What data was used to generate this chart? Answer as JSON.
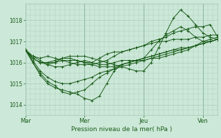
{
  "title": "",
  "xlabel": "Pression niveau de la mer( hPa )",
  "ylabel": "",
  "bg_color": "#cce8d8",
  "plot_bg_color": "#cce8d8",
  "line_color": "#1a5c1a",
  "grid_color": "#aaccbb",
  "dark_grid_color": "#5a9a7a",
  "ylim": [
    1013.5,
    1018.8
  ],
  "yticks": [
    1014,
    1015,
    1016,
    1017,
    1018
  ],
  "xtick_labels": [
    "Mar",
    "Mer",
    "Jeu",
    "Ven"
  ],
  "xtick_positions": [
    0,
    96,
    192,
    288
  ],
  "total_hours": 312,
  "series": [
    [
      1016.6,
      1016.3,
      1016.1,
      1015.9,
      1015.8,
      1015.8,
      1015.9,
      1016.0,
      1016.1,
      1016.0,
      1016.2,
      1016.4,
      1016.5,
      1016.5,
      1016.6,
      1016.7,
      1016.8,
      1017.0,
      1017.1,
      1017.2,
      1017.4,
      1017.5,
      1017.6,
      1017.7,
      1017.7,
      1017.8,
      1017.2
    ],
    [
      1016.6,
      1016.0,
      1015.4,
      1015.0,
      1014.8,
      1014.7,
      1014.6,
      1014.5,
      1014.3,
      1014.2,
      1014.4,
      1015.0,
      1015.6,
      1015.9,
      1016.0,
      1016.1,
      1016.1,
      1016.2,
      1016.2,
      1016.3,
      1016.4,
      1016.5,
      1016.6,
      1016.8,
      1017.0,
      1017.1,
      1017.2
    ],
    [
      1016.6,
      1016.0,
      1015.5,
      1015.1,
      1014.9,
      1014.6,
      1014.5,
      1014.6,
      1014.7,
      1015.0,
      1015.3,
      1015.5,
      1015.7,
      1015.9,
      1016.0,
      1016.1,
      1016.2,
      1016.3,
      1016.4,
      1016.5,
      1016.6,
      1016.6,
      1016.7,
      1016.8,
      1016.9,
      1017.0,
      1017.1
    ],
    [
      1016.6,
      1016.1,
      1015.6,
      1015.3,
      1015.1,
      1015.0,
      1015.0,
      1015.1,
      1015.2,
      1015.3,
      1015.5,
      1015.6,
      1015.7,
      1015.8,
      1015.9,
      1016.0,
      1016.1,
      1016.2,
      1016.3,
      1016.4,
      1016.5,
      1016.6,
      1016.7,
      1016.8,
      1016.9,
      1017.0,
      1017.1
    ],
    [
      1016.6,
      1016.2,
      1016.0,
      1016.0,
      1016.0,
      1016.1,
      1016.1,
      1016.1,
      1016.0,
      1016.0,
      1015.9,
      1015.9,
      1016.0,
      1016.1,
      1016.1,
      1016.1,
      1016.2,
      1016.3,
      1016.4,
      1016.5,
      1016.6,
      1016.7,
      1016.7,
      1016.8,
      1016.9,
      1017.0,
      1017.1
    ],
    [
      1016.6,
      1016.3,
      1016.2,
      1016.3,
      1016.2,
      1016.1,
      1016.0,
      1015.9,
      1015.9,
      1015.9,
      1016.0,
      1016.1,
      1016.3,
      1016.5,
      1016.6,
      1016.7,
      1016.8,
      1016.9,
      1017.0,
      1017.0,
      1017.1,
      1017.1,
      1017.1,
      1017.2,
      1017.2,
      1017.3,
      1017.3
    ],
    [
      1016.6,
      1016.2,
      1016.0,
      1015.9,
      1016.0,
      1016.2,
      1016.3,
      1016.3,
      1016.3,
      1016.2,
      1016.1,
      1016.0,
      1015.9,
      1015.8,
      1015.7,
      1015.6,
      1015.6,
      1016.0,
      1016.7,
      1017.4,
      1018.1,
      1018.5,
      1018.2,
      1017.8,
      1017.4,
      1017.2,
      1017.1
    ],
    [
      1016.6,
      1016.2,
      1016.0,
      1016.0,
      1016.1,
      1016.2,
      1016.2,
      1016.1,
      1016.0,
      1015.9,
      1015.8,
      1015.8,
      1015.8,
      1015.9,
      1016.0,
      1016.1,
      1016.2,
      1016.6,
      1017.0,
      1017.3,
      1017.5,
      1017.7,
      1017.5,
      1017.2,
      1017.0,
      1017.0,
      1017.1
    ]
  ]
}
